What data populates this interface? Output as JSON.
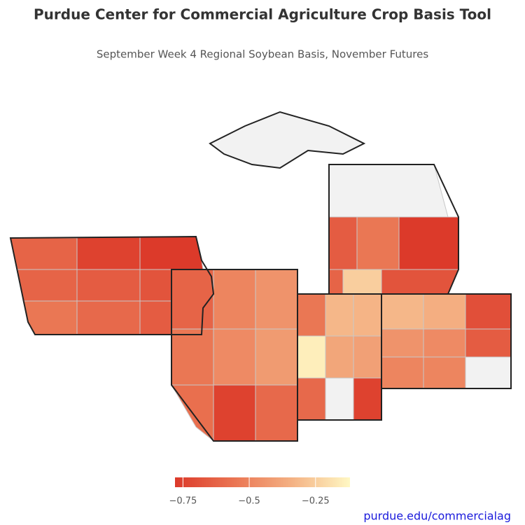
{
  "chart_data": {
    "type": "choropleth",
    "title": "Purdue Center for Commercial Agriculture Crop Basis Tool",
    "subtitle": "September Week 4 Regional Soybean Basis, November Futures",
    "values": [
      -0.62,
      -0.75,
      -0.78,
      -0.62,
      -0.65,
      -0.68,
      -0.55,
      -0.6,
      -0.65,
      -0.62,
      -0.5,
      -0.45,
      -0.55,
      -0.48,
      -0.42,
      -0.58,
      -0.75,
      -0.6,
      -0.55,
      -0.32,
      -0.33,
      -0.15,
      -0.38,
      -0.4,
      -0.6,
      null,
      -0.75,
      -0.32,
      -0.35,
      -0.7,
      -0.45,
      -0.48,
      -0.65,
      -0.5,
      -0.5,
      null,
      null,
      null,
      -0.65,
      -0.55,
      -0.78,
      -0.62,
      -0.25,
      -0.68
    ],
    "zlim": [
      -0.78,
      -0.12
    ],
    "zticks": [
      {
        "value": -0.75,
        "label": "−0.75"
      },
      {
        "value": -0.5,
        "label": "−0.5"
      },
      {
        "value": -0.25,
        "label": "−0.25"
      }
    ],
    "colorscale": [
      "#dc3a2a",
      "#ea7452",
      "#f4b183",
      "#fff8c4"
    ],
    "missing_color": "#f2f2f2",
    "source": "purdue.edu/commercialag"
  }
}
